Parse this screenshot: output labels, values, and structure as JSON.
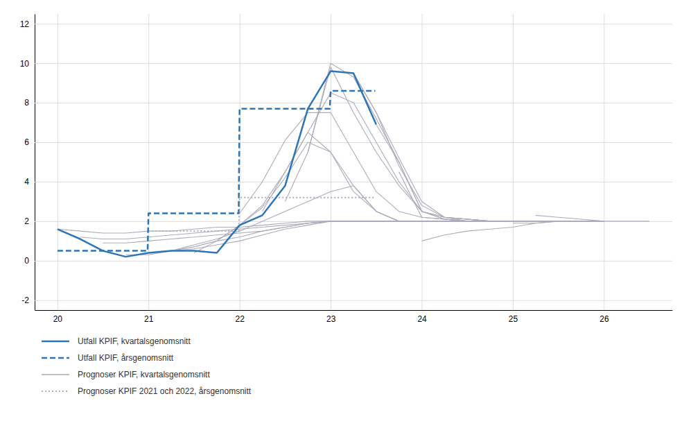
{
  "chart_data": {
    "type": "line",
    "xlim": [
      19.75,
      26.75
    ],
    "ylim": [
      -2.5,
      12.5
    ],
    "xticks": [
      20,
      21,
      22,
      23,
      24,
      25,
      26
    ],
    "yticks": [
      -2,
      0,
      2,
      4,
      6,
      8,
      10,
      12
    ],
    "grid": true,
    "legend": "lower left",
    "series": [
      {
        "name": "Utfall KPIF, kvartalsgenomsnitt",
        "color": "#2E75B6",
        "line_style": "solid",
        "x": [
          20.0,
          20.25,
          20.5,
          20.75,
          21.0,
          21.25,
          21.5,
          21.75,
          22.0,
          22.25,
          22.5,
          22.75,
          23.0,
          23.25,
          23.5
        ],
        "values": [
          1.6,
          1.1,
          0.5,
          0.2,
          0.4,
          0.5,
          0.5,
          0.4,
          1.8,
          2.3,
          3.8,
          7.7,
          9.6,
          9.5,
          6.9
        ]
      },
      {
        "name": "Utfall KPIF, årsgenomsnitt",
        "color": "#2E75B6",
        "line_style": "dashed",
        "x": [
          20.0,
          20.99,
          21.0,
          21.99,
          22.0,
          22.99,
          23.0,
          23.49
        ],
        "values": [
          0.5,
          0.5,
          2.4,
          2.4,
          7.7,
          7.7,
          8.6,
          8.6
        ]
      },
      {
        "name": "Prognoser KPIF, kvartalsgenomsnitt",
        "color": "#ABABBA",
        "line_style": "solid",
        "x": [
          20.0,
          20.25,
          20.5,
          20.75,
          21.0,
          21.25,
          21.5,
          21.75,
          22.0,
          22.25,
          22.5,
          22.75,
          23.0,
          23.25,
          23.5,
          23.75,
          24.0,
          24.25,
          24.5,
          25.0,
          25.5
        ],
        "values": [
          1.6,
          1.5,
          1.4,
          1.4,
          1.5,
          1.5,
          1.6,
          1.7,
          1.7,
          1.8,
          1.9,
          2.0,
          2.0,
          2.0,
          2.0,
          2.0,
          2.0,
          2.0,
          2.0,
          2.0,
          2.0
        ]
      },
      {
        "name": "Prognoser KPIF, kvartalsgenomsnitt",
        "color": "#ABABBA",
        "line_style": "solid",
        "x": [
          20.25,
          20.5,
          20.75,
          21.0,
          21.25,
          21.5,
          21.75,
          22.0,
          22.25,
          22.5,
          22.75,
          23.0,
          23.25,
          23.5,
          23.75,
          24.0,
          24.25,
          24.5,
          25.0
        ],
        "values": [
          1.2,
          1.1,
          1.1,
          1.2,
          1.3,
          1.4,
          1.5,
          1.6,
          1.7,
          1.8,
          1.9,
          2.0,
          2.0,
          2.0,
          2.0,
          2.0,
          2.0,
          2.0,
          2.0
        ]
      },
      {
        "name": "Prognoser KPIF, kvartalsgenomsnitt",
        "color": "#ABABBA",
        "line_style": "solid",
        "x": [
          20.5,
          20.75,
          21.0,
          21.25,
          21.5,
          21.75,
          22.0,
          22.25,
          22.5,
          22.75,
          23.0,
          23.25,
          23.5,
          23.75,
          24.0,
          24.5,
          25.0
        ],
        "values": [
          0.9,
          0.9,
          1.0,
          1.1,
          1.2,
          1.3,
          1.4,
          1.5,
          1.7,
          1.9,
          2.0,
          2.0,
          2.0,
          2.0,
          2.0,
          2.0,
          2.0
        ]
      },
      {
        "name": "Prognoser KPIF, kvartalsgenomsnitt",
        "color": "#ABABBA",
        "line_style": "solid",
        "x": [
          20.75,
          21.0,
          21.25,
          21.5,
          21.75,
          22.0,
          22.25,
          22.5,
          22.75,
          23.0,
          23.25,
          23.5,
          23.75,
          24.0,
          24.5,
          25.0
        ],
        "values": [
          0.3,
          0.3,
          0.5,
          0.6,
          0.8,
          1.0,
          1.3,
          1.6,
          1.8,
          2.0,
          2.0,
          2.0,
          2.0,
          2.0,
          2.0,
          2.0
        ]
      },
      {
        "name": "Prognoser KPIF, kvartalsgenomsnitt",
        "color": "#ABABBA",
        "line_style": "solid",
        "x": [
          21.0,
          21.25,
          21.5,
          21.75,
          22.0,
          22.25,
          22.5,
          22.75,
          23.0,
          23.25,
          23.5,
          23.75,
          24.0,
          24.5,
          25.0
        ],
        "values": [
          0.4,
          0.5,
          0.7,
          1.0,
          1.2,
          1.5,
          1.7,
          1.9,
          2.0,
          2.0,
          2.0,
          2.0,
          2.0,
          2.0,
          2.0
        ]
      },
      {
        "name": "Prognoser KPIF, kvartalsgenomsnitt",
        "color": "#ABABBA",
        "line_style": "solid",
        "x": [
          21.25,
          21.5,
          21.75,
          22.0,
          22.25,
          22.5,
          22.75,
          23.0,
          23.25,
          23.5,
          23.75,
          24.0,
          24.5,
          25.0
        ],
        "values": [
          0.5,
          0.8,
          1.1,
          1.5,
          2.0,
          2.5,
          3.0,
          3.5,
          3.8,
          2.5,
          2.0,
          2.0,
          2.0,
          2.0
        ]
      },
      {
        "name": "Prognoser KPIF, kvartalsgenomsnitt",
        "color": "#ABABBA",
        "line_style": "solid",
        "x": [
          21.5,
          21.75,
          22.0,
          22.25,
          22.5,
          22.75,
          23.0,
          23.25,
          23.5,
          23.75,
          24.0,
          24.5,
          25.0
        ],
        "values": [
          0.4,
          1.0,
          1.8,
          2.7,
          4.2,
          6.0,
          5.5,
          3.5,
          2.5,
          2.0,
          2.0,
          2.0,
          2.0
        ]
      },
      {
        "name": "Prognoser KPIF, kvartalsgenomsnitt",
        "color": "#ABABBA",
        "line_style": "solid",
        "x": [
          21.75,
          22.0,
          22.25,
          22.5,
          22.75,
          23.0,
          23.25,
          23.5,
          23.75,
          24.0,
          24.5,
          25.0
        ],
        "values": [
          1.0,
          1.8,
          2.8,
          4.5,
          6.5,
          5.5,
          3.8,
          2.5,
          2.0,
          2.0,
          2.0,
          2.0
        ]
      },
      {
        "name": "Prognoser KPIF, kvartalsgenomsnitt",
        "color": "#ABABBA",
        "line_style": "solid",
        "x": [
          22.0,
          22.25,
          22.5,
          22.75,
          23.0,
          23.25,
          23.5,
          23.75,
          24.0,
          24.25,
          24.5,
          25.0
        ],
        "values": [
          2.4,
          4.0,
          6.1,
          7.5,
          7.5,
          5.5,
          3.5,
          2.5,
          2.2,
          2.1,
          2.0,
          2.0
        ]
      },
      {
        "name": "Prognoser KPIF, kvartalsgenomsnitt",
        "color": "#ABABBA",
        "line_style": "solid",
        "x": [
          22.25,
          22.5,
          22.75,
          23.0,
          23.25,
          23.5,
          23.75,
          24.0,
          24.25,
          24.5,
          24.75,
          25.0,
          25.5,
          26.0
        ],
        "values": [
          2.5,
          4.5,
          6.5,
          8.5,
          8.0,
          6.0,
          4.0,
          2.5,
          2.1,
          2.0,
          2.0,
          2.0,
          2.0,
          2.0
        ]
      },
      {
        "name": "Prognoser KPIF, kvartalsgenomsnitt",
        "color": "#ABABBA",
        "line_style": "solid",
        "x": [
          22.5,
          22.75,
          23.0,
          23.25,
          23.5,
          23.75,
          24.0,
          24.25,
          24.5,
          24.75,
          25.0,
          25.5,
          26.0
        ],
        "values": [
          3.0,
          5.5,
          9.8,
          7.5,
          5.5,
          3.8,
          2.5,
          2.2,
          2.1,
          2.0,
          2.0,
          2.0,
          2.0
        ]
      },
      {
        "name": "Prognoser KPIF, kvartalsgenomsnitt",
        "color": "#ABABBA",
        "line_style": "solid",
        "x": [
          22.75,
          23.0,
          23.25,
          23.5,
          23.75,
          24.0,
          24.25,
          24.5,
          24.75,
          25.0,
          25.5,
          26.0
        ],
        "values": [
          5.5,
          10.0,
          9.3,
          7.2,
          5.0,
          2.5,
          2.1,
          2.0,
          2.0,
          2.0,
          2.0,
          2.0
        ]
      },
      {
        "name": "Prognoser KPIF, kvartalsgenomsnitt",
        "color": "#ABABBA",
        "line_style": "solid",
        "x": [
          23.0,
          23.25,
          23.5,
          23.75,
          24.0,
          24.25,
          24.5,
          24.75,
          25.0,
          25.5,
          26.0
        ],
        "values": [
          9.6,
          9.5,
          7.5,
          5.2,
          3.0,
          2.2,
          2.0,
          2.0,
          2.0,
          2.0,
          2.0
        ]
      },
      {
        "name": "Prognoser KPIF, kvartalsgenomsnitt",
        "color": "#ABABBA",
        "line_style": "solid",
        "x": [
          23.25,
          23.5,
          23.75,
          24.0,
          24.25,
          24.5,
          24.75,
          25.0,
          25.5,
          26.0
        ],
        "values": [
          9.5,
          7.5,
          4.8,
          2.8,
          2.2,
          2.1,
          2.0,
          2.0,
          2.0,
          2.0
        ]
      },
      {
        "name": "Prognoser KPIF, kvartalsgenomsnitt",
        "color": "#ABABBA",
        "line_style": "solid",
        "x": [
          23.5,
          23.75,
          24.0,
          24.25,
          24.5,
          24.75,
          25.0,
          25.5,
          26.0
        ],
        "values": [
          6.9,
          5.0,
          2.5,
          2.2,
          2.1,
          2.0,
          2.0,
          2.0,
          2.0
        ]
      },
      {
        "name": "Prognoser KPIF, kvartalsgenomsnitt",
        "color": "#ABABBA",
        "line_style": "solid",
        "x": [
          23.75,
          24.0,
          24.25,
          24.5,
          24.75,
          25.0,
          25.5,
          26.0
        ],
        "values": [
          4.5,
          2.2,
          2.1,
          2.0,
          2.0,
          2.0,
          2.0,
          2.0
        ]
      },
      {
        "name": "Prognoser KPIF, kvartalsgenomsnitt",
        "color": "#ABABBA",
        "line_style": "solid",
        "x": [
          24.0,
          24.25,
          24.5,
          24.75,
          25.0,
          25.25,
          25.5,
          25.75,
          26.0
        ],
        "values": [
          1.0,
          1.3,
          1.5,
          1.6,
          1.7,
          1.9,
          2.0,
          2.0,
          2.0
        ]
      },
      {
        "name": "Prognoser KPIF, kvartalsgenomsnitt",
        "color": "#ABABBA",
        "line_style": "solid",
        "x": [
          24.25,
          24.5,
          24.75,
          25.0,
          25.25,
          25.5,
          25.75,
          26.0
        ],
        "values": [
          2.2,
          2.1,
          2.0,
          2.0,
          2.0,
          2.0,
          2.0,
          2.0
        ]
      },
      {
        "name": "Prognoser KPIF, kvartalsgenomsnitt",
        "color": "#ABABBA",
        "line_style": "solid",
        "x": [
          24.5,
          24.75,
          25.0,
          25.25,
          25.5,
          25.75,
          26.0
        ],
        "values": [
          2.1,
          2.0,
          2.0,
          2.0,
          2.0,
          2.0,
          2.0
        ]
      },
      {
        "name": "Prognoser KPIF, kvartalsgenomsnitt",
        "color": "#ABABBA",
        "line_style": "solid",
        "x": [
          24.75,
          25.0,
          25.25,
          25.5,
          25.75,
          26.0
        ],
        "values": [
          2.0,
          2.0,
          2.0,
          2.0,
          2.0,
          2.0
        ]
      },
      {
        "name": "Prognoser KPIF, kvartalsgenomsnitt",
        "color": "#ABABBA",
        "line_style": "solid",
        "x": [
          25.0,
          25.25,
          25.5,
          25.75,
          26.0
        ],
        "values": [
          1.9,
          1.9,
          2.0,
          2.0,
          2.0
        ]
      },
      {
        "name": "Prognoser KPIF, kvartalsgenomsnitt",
        "color": "#ABABBA",
        "line_style": "solid",
        "x": [
          25.25,
          25.5,
          25.75,
          26.0,
          26.25,
          26.5
        ],
        "values": [
          2.3,
          2.2,
          2.1,
          2.0,
          2.0,
          2.0
        ]
      },
      {
        "name": "Prognoser KPIF 2021 och 2022, årsgenomsnitt",
        "color": "#ABABBA",
        "line_style": "dotted",
        "x": [
          21.0,
          21.99,
          22.0,
          22.99,
          23.0,
          23.49
        ],
        "values": [
          1.5,
          1.5,
          3.2,
          3.2,
          3.2,
          3.2
        ]
      }
    ]
  }
}
